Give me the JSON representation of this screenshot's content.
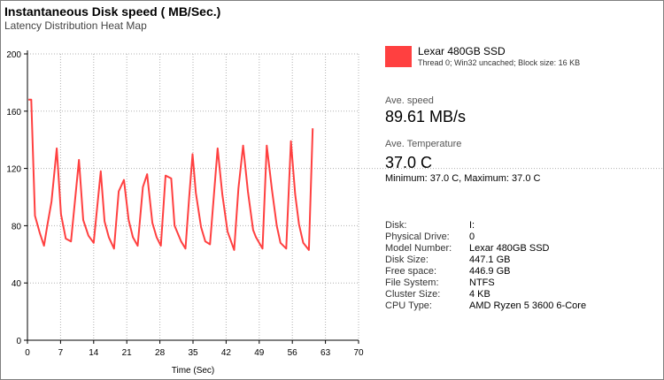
{
  "chart_data": {
    "type": "line",
    "title": "Instantaneous Disk speed ( MB/Sec.)",
    "subtitle": "Latency Distribution Heat Map",
    "xlabel": "Time (Sec)",
    "ylabel": "",
    "xlim": [
      0,
      70
    ],
    "ylim": [
      0,
      200
    ],
    "x_ticks": [
      0,
      7,
      14,
      21,
      28,
      35,
      42,
      49,
      56,
      63,
      70
    ],
    "y_ticks": [
      0,
      40,
      80,
      120,
      160,
      200
    ],
    "grid": true,
    "series": [
      {
        "name": "Lexar 480GB SSD",
        "color": "#ff4040",
        "x": [
          0.2,
          0.8,
          1.6,
          2.6,
          3.5,
          4.2,
          5.1,
          6.2,
          7.1,
          8.1,
          9.2,
          10.9,
          11.8,
          12.9,
          14.0,
          15.5,
          16.3,
          17.2,
          18.3,
          19.3,
          20.4,
          21.4,
          22.3,
          23.3,
          24.4,
          25.3,
          26.4,
          27.3,
          28.2,
          29.2,
          30.4,
          31.1,
          32.5,
          33.4,
          34.2,
          34.9,
          35.6,
          36.7,
          37.6,
          38.6,
          40.2,
          41.2,
          42.3,
          43.7,
          44.6,
          45.6,
          46.6,
          47.7,
          48.3,
          49.7,
          50.6,
          51.7,
          52.7,
          53.5,
          54.7,
          55.7,
          56.6,
          57.4,
          58.3,
          59.5,
          60.3
        ],
        "values": [
          168,
          168,
          87,
          75,
          66,
          80,
          97,
          134,
          88,
          71,
          69,
          126,
          84,
          73,
          68,
          118,
          83,
          72,
          64,
          104,
          112,
          84,
          72,
          66,
          107,
          116,
          82,
          72,
          66,
          115,
          113,
          80,
          69,
          64,
          100,
          130,
          103,
          79,
          69,
          67,
          134,
          102,
          76,
          63,
          106,
          136,
          104,
          77,
          72,
          64,
          136,
          105,
          80,
          68,
          64,
          139,
          102,
          81,
          68,
          63,
          148
        ]
      }
    ]
  },
  "legend": {
    "color": "#ff4040",
    "name": "Lexar 480GB SSD",
    "description": "Thread 0; Win32 uncached; Block size: 16 KB"
  },
  "stats": {
    "speed_label": "Ave. speed",
    "speed_value": "89.61 MB/s",
    "temp_label": "Ave. Temperature",
    "temp_value": "37.0 C",
    "minmax": "Minimum: 37.0 C, Maximum: 37.0 C"
  },
  "info": [
    {
      "key": "Disk:",
      "value": "I:"
    },
    {
      "key": "Physical Drive:",
      "value": "0"
    },
    {
      "key": "Model Number:",
      "value": "Lexar 480GB SSD"
    },
    {
      "key": "Disk Size:",
      "value": "447.1 GB"
    },
    {
      "key": "Free space:",
      "value": "446.9 GB"
    },
    {
      "key": "File System:",
      "value": "NTFS"
    },
    {
      "key": "Cluster Size:",
      "value": "4 KB"
    },
    {
      "key": "CPU Type:",
      "value": "AMD Ryzen 5 3600 6-Core"
    }
  ]
}
